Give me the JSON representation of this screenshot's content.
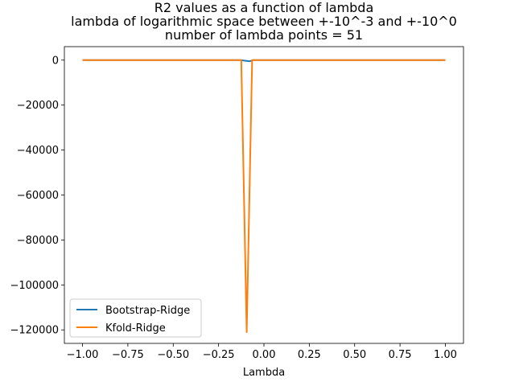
{
  "chart_data": {
    "type": "line",
    "title_lines": [
      "R2 values as a function of lambda",
      "lambda of logarithmic space between +-10^-3 and +-10^0",
      "number of lambda points = 51"
    ],
    "xlabel": "Lambda",
    "ylabel": "",
    "xlim": [
      -1.1,
      1.1
    ],
    "ylim": [
      -126000,
      6000
    ],
    "xticks": [
      -1.0,
      -0.75,
      -0.5,
      -0.25,
      0.0,
      0.25,
      0.5,
      0.75,
      1.0
    ],
    "xtick_labels": [
      "−1.00",
      "−0.75",
      "−0.50",
      "−0.25",
      "0.00",
      "0.25",
      "0.50",
      "0.75",
      "1.00"
    ],
    "yticks": [
      0,
      -20000,
      -40000,
      -60000,
      -80000,
      -100000,
      -120000
    ],
    "ytick_labels": [
      "0",
      "−20000",
      "−40000",
      "−60000",
      "−80000",
      "−100000",
      "−120000"
    ],
    "legend_position": "lower-left",
    "series": [
      {
        "name": "Bootstrap-Ridge",
        "color": "#1f77b4",
        "x": [
          -1.0,
          -0.13,
          -0.1,
          -0.08,
          -0.06,
          1.0
        ],
        "y": [
          0,
          0,
          -300,
          -500,
          0,
          0
        ]
      },
      {
        "name": "Kfold-Ridge",
        "color": "#ff7f0e",
        "x": [
          -1.0,
          -0.14,
          -0.125,
          -0.095,
          -0.065,
          -0.06,
          1.0
        ],
        "y": [
          0,
          0,
          0,
          -121000,
          0,
          0,
          0
        ]
      }
    ]
  }
}
